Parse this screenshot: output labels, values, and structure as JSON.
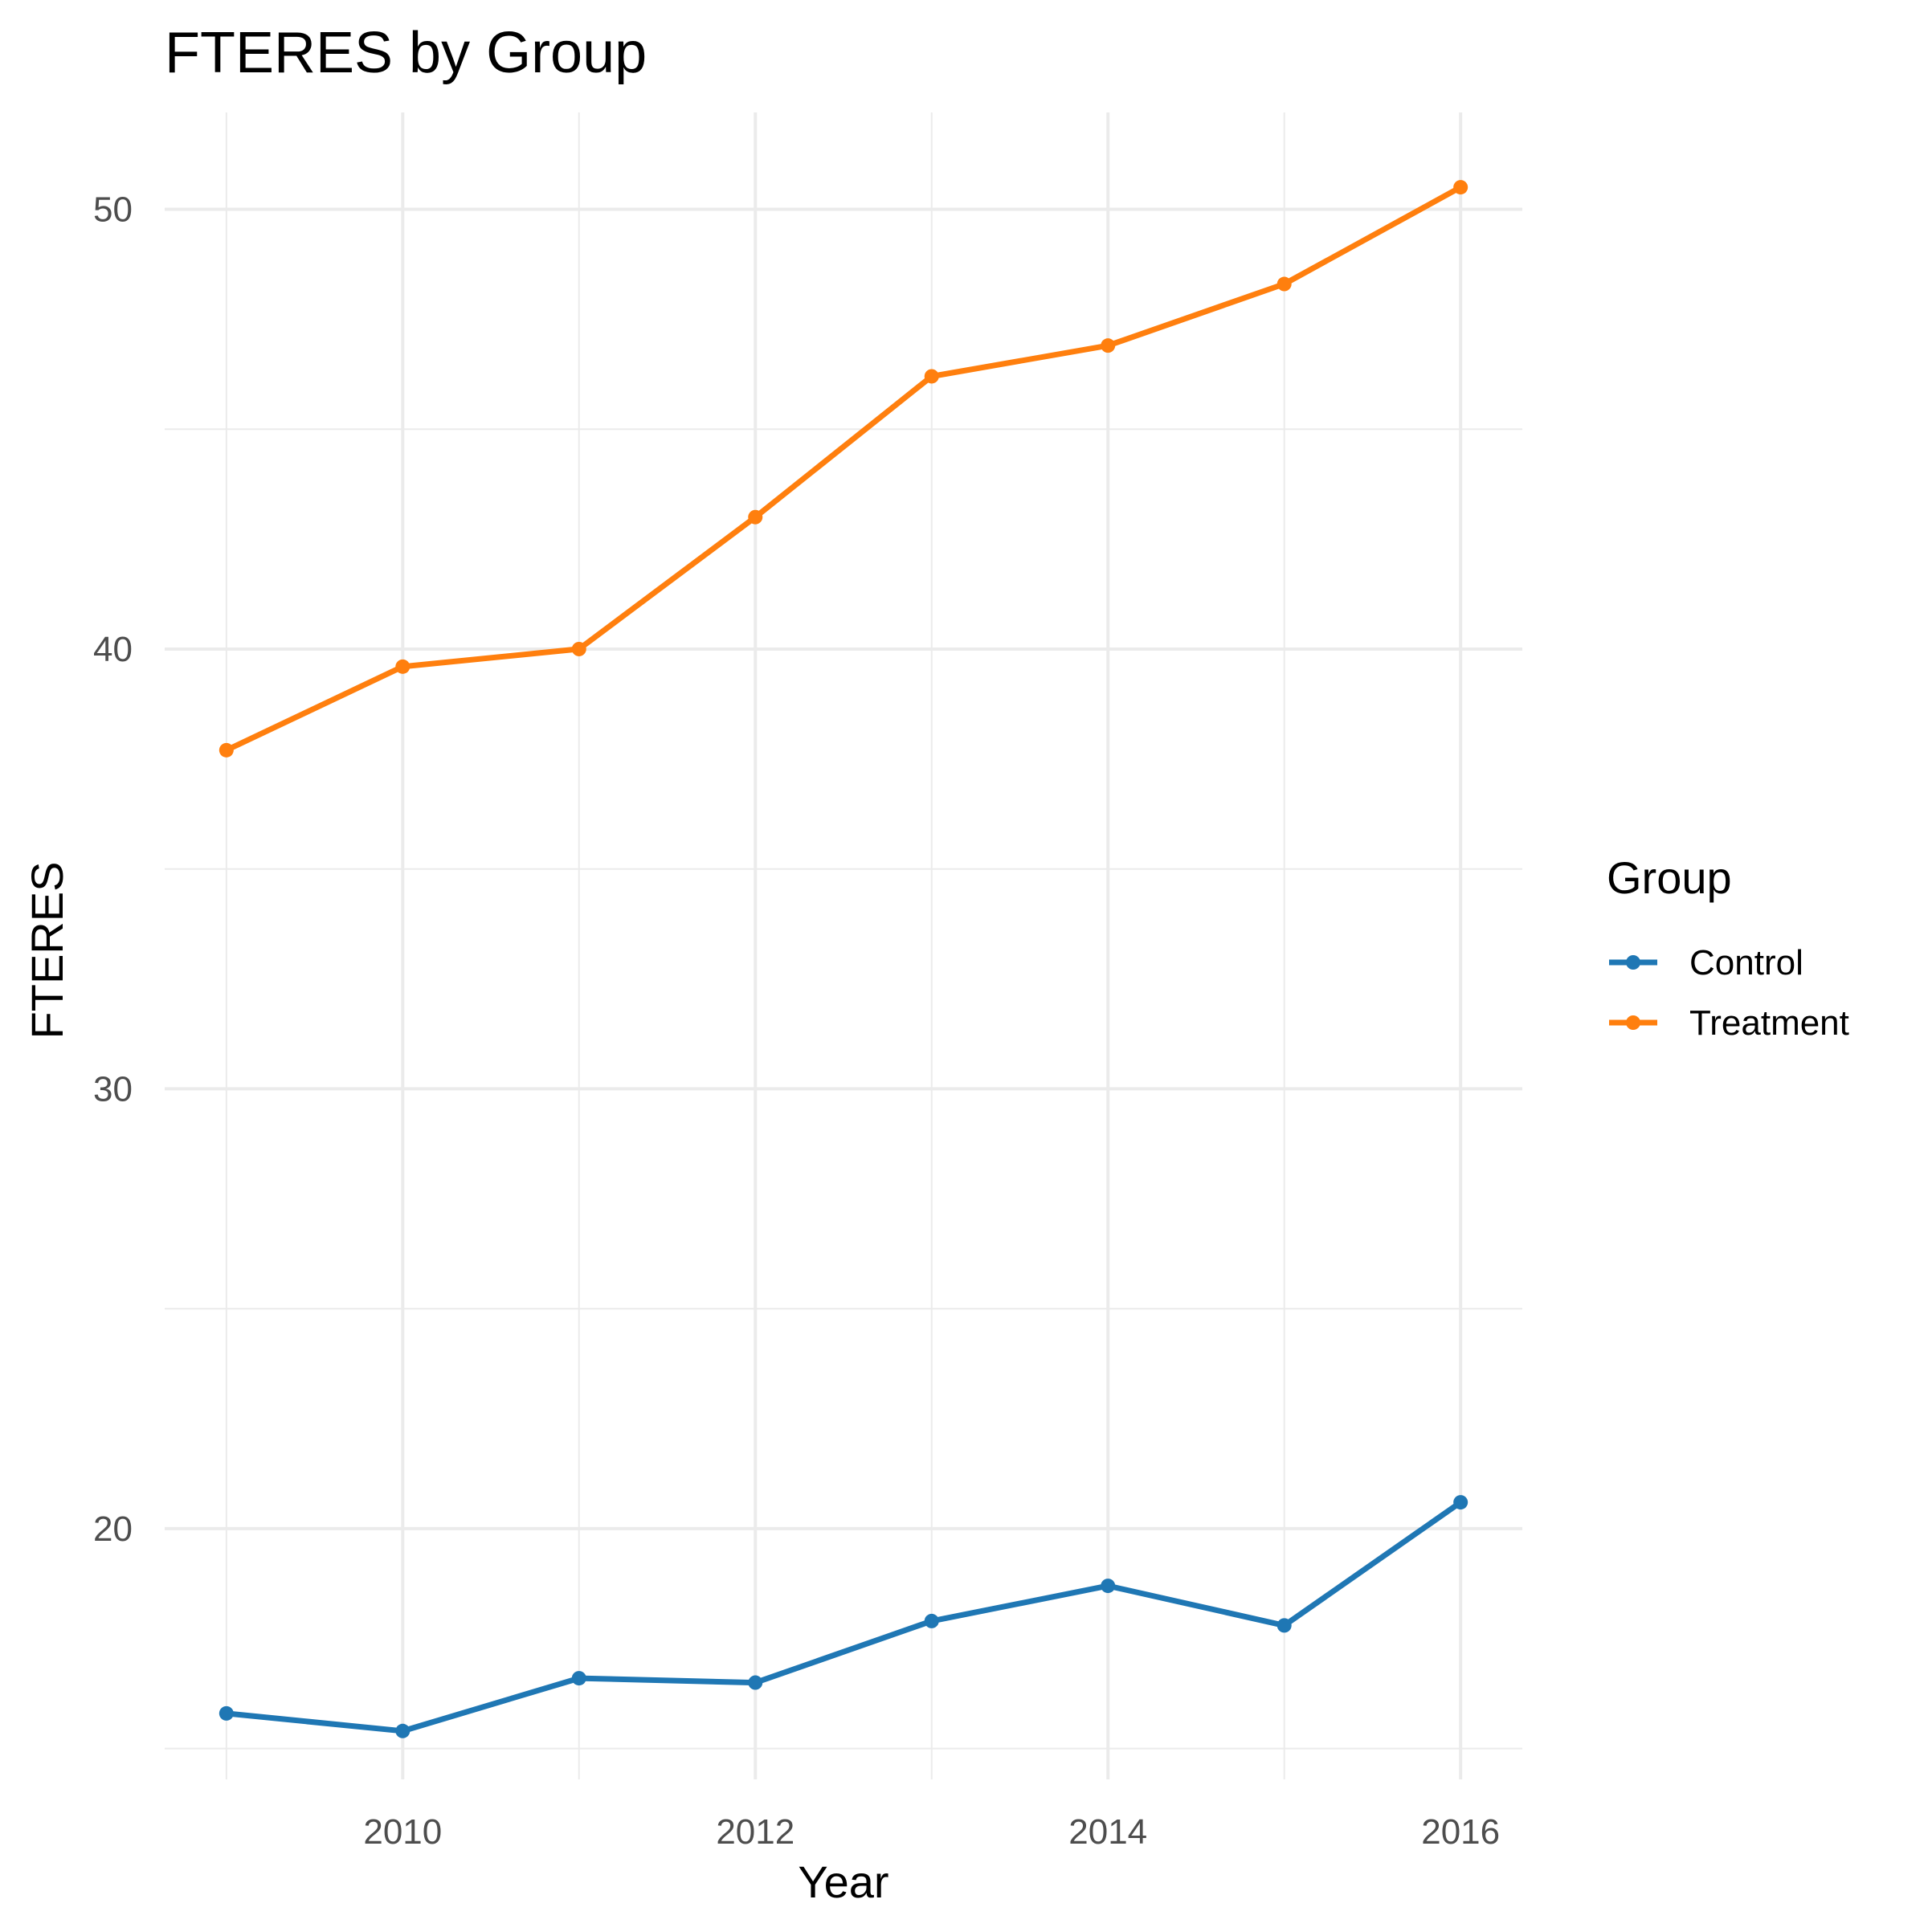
{
  "chart_data": {
    "type": "line",
    "title": "FTERES by Group",
    "xlabel": "Year",
    "ylabel": "FTERES",
    "x": [
      2009,
      2010,
      2011,
      2012,
      2013,
      2014,
      2015,
      2016
    ],
    "xlim": [
      2008.65,
      2016.35
    ],
    "ylim": [
      14.3,
      52.2
    ],
    "x_ticks": [
      2010,
      2012,
      2014,
      2016
    ],
    "y_ticks": [
      20,
      30,
      40,
      50
    ],
    "x_minor_ticks": [
      2009,
      2011,
      2013,
      2015
    ],
    "y_minor_ticks": [
      15,
      25,
      35,
      45
    ],
    "grid": true,
    "legend": {
      "title": "Group",
      "placement": "right"
    },
    "series": [
      {
        "name": "Control",
        "color": "#1f77b4",
        "values": [
          15.8,
          15.4,
          16.6,
          16.5,
          17.9,
          18.7,
          17.8,
          20.6
        ]
      },
      {
        "name": "Treatment",
        "color": "#ff7f0e",
        "values": [
          37.7,
          39.6,
          40.0,
          43.0,
          46.2,
          46.9,
          48.3,
          50.5
        ]
      }
    ]
  }
}
